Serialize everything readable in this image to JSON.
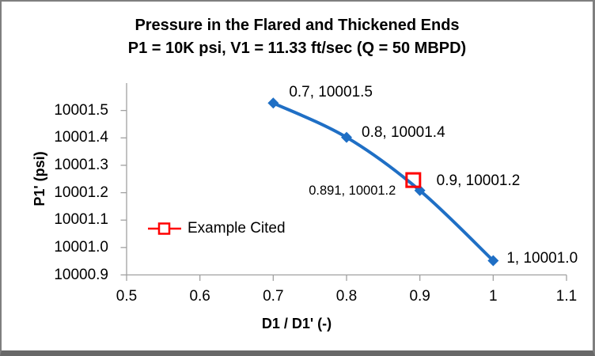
{
  "frame": {
    "background": "#ffffff",
    "border_color": "#7f7f7f",
    "border_bottom_color": "#686868"
  },
  "chart_data": {
    "type": "scatter",
    "title": "Pressure in the Flared and Thickened Ends",
    "subtitle": "P1 = 10K psi, V1 = 11.33 ft/sec (Q = 50 MBPD)",
    "xlabel": "D1 / D1' (-)",
    "ylabel": "P1' (psi)",
    "xlim": [
      0.5,
      1.1
    ],
    "ylim": [
      10000.9,
      10001.6
    ],
    "grid": false,
    "axis_color": "#a0a0a0",
    "x_ticks": [
      {
        "value": 0.5,
        "label": "0.5"
      },
      {
        "value": 0.6,
        "label": "0.6"
      },
      {
        "value": 0.7,
        "label": "0.7"
      },
      {
        "value": 0.8,
        "label": "0.8"
      },
      {
        "value": 0.9,
        "label": "0.9"
      },
      {
        "value": 1.0,
        "label": "1"
      },
      {
        "value": 1.1,
        "label": "1.1"
      }
    ],
    "y_ticks": [
      {
        "value": 10000.9,
        "label": "10000.9"
      },
      {
        "value": 10001.0,
        "label": "10001.0"
      },
      {
        "value": 10001.1,
        "label": "10001.1"
      },
      {
        "value": 10001.2,
        "label": "10001.2"
      },
      {
        "value": 10001.3,
        "label": "10001.3"
      },
      {
        "value": 10001.4,
        "label": "10001.4"
      },
      {
        "value": 10001.5,
        "label": "10001.5"
      }
    ],
    "series": [
      {
        "type": "smooth-line",
        "color": "#1f6fc5",
        "marker": "diamond",
        "marker_size": 14,
        "line_width": 4,
        "points": [
          {
            "x": 0.7,
            "y": 10001.5,
            "y_plot": 10001.527,
            "label": "0.7, 10001.5",
            "label_dx": 20,
            "label_dy": -13
          },
          {
            "x": 0.8,
            "y": 10001.4,
            "y_plot": 10001.402,
            "label": "0.8, 10001.4",
            "label_dx": 19,
            "label_dy": -6
          },
          {
            "x": 0.9,
            "y": 10001.2,
            "y_plot": 10001.208,
            "label": "0.9, 10001.2",
            "label_dx": 21,
            "label_dy": -12
          },
          {
            "x": 1.0,
            "y": 10001.0,
            "y_plot": 10000.952,
            "label": "1, 10001.0",
            "label_dx": 17,
            "label_dy": -2
          }
        ]
      },
      {
        "type": "marker-only",
        "name": "Example Cited",
        "color": "#ff0000",
        "marker": "open-square",
        "marker_size": 17,
        "line_width": 3,
        "points": [
          {
            "x": 0.891,
            "y": 10001.2,
            "y_plot": 10001.246,
            "label": "0.891, 10001.2",
            "label_dx": -17,
            "label_dy": 13,
            "label_align": "right",
            "label_small": true
          }
        ]
      }
    ],
    "legend": {
      "label": "Example Cited",
      "position": "inside-left",
      "color": "#ff0000"
    }
  }
}
